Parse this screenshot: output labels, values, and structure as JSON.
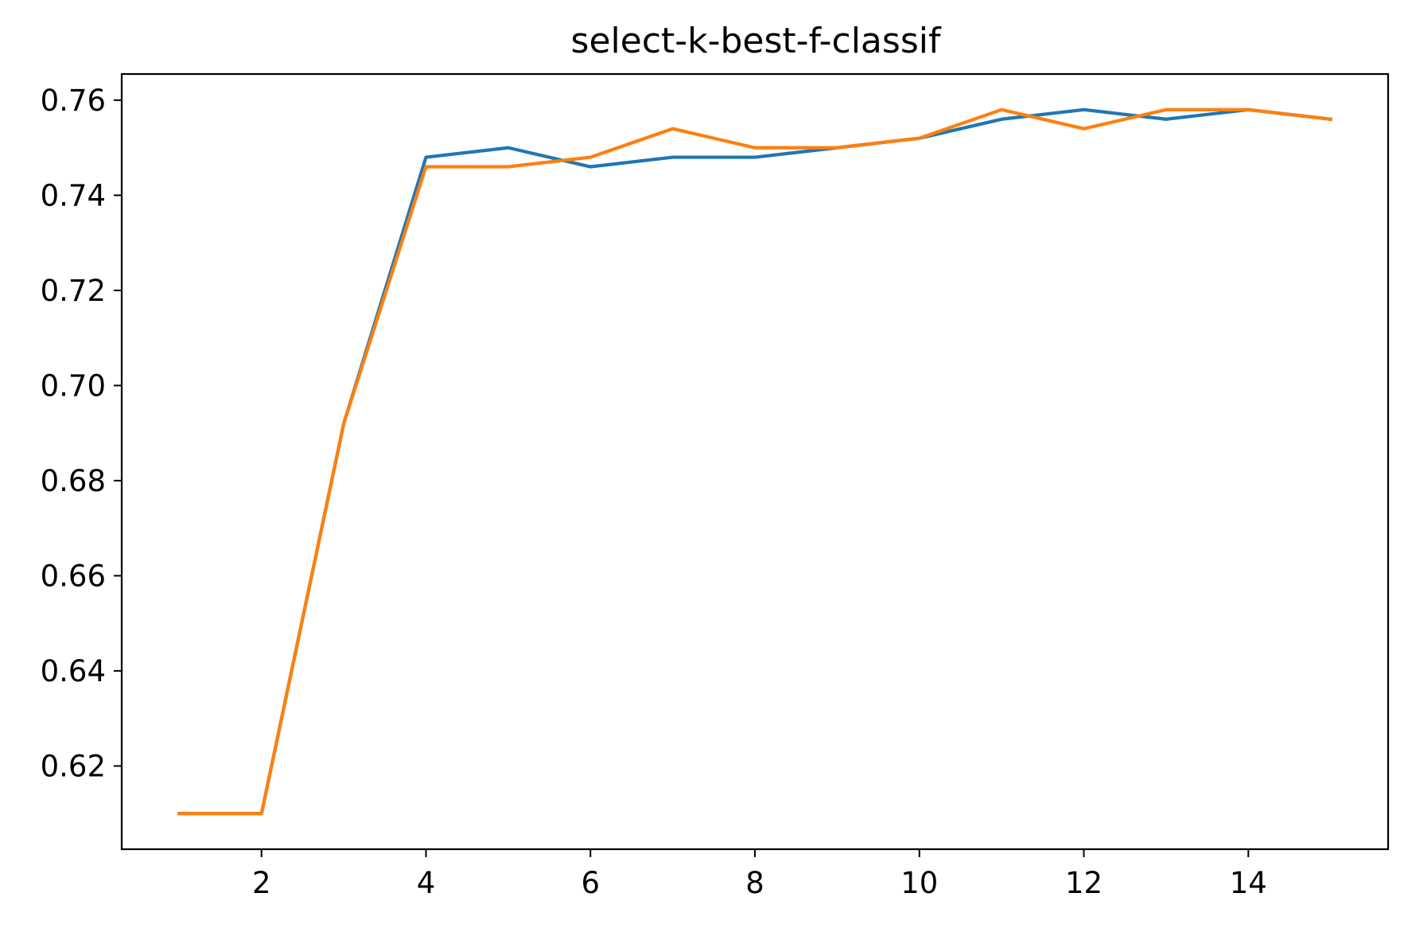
{
  "chart_data": {
    "type": "line",
    "title": "select-k-best-f-classif",
    "xlabel": "",
    "ylabel": "",
    "xlim": [
      0.3,
      15.7
    ],
    "ylim": [
      0.6025,
      0.7655
    ],
    "grid": false,
    "x_ticks": [
      2,
      4,
      6,
      8,
      10,
      12,
      14
    ],
    "y_ticks": [
      0.62,
      0.64,
      0.66,
      0.68,
      0.7,
      0.72,
      0.74,
      0.76
    ],
    "x_tick_labels": [
      "2",
      "4",
      "6",
      "8",
      "10",
      "12",
      "14"
    ],
    "y_tick_labels": [
      "0.62",
      "0.64",
      "0.66",
      "0.68",
      "0.70",
      "0.72",
      "0.74",
      "0.76"
    ],
    "x": [
      1,
      2,
      3,
      4,
      5,
      6,
      7,
      8,
      9,
      10,
      11,
      12,
      13,
      14,
      15
    ],
    "series": [
      {
        "color": "#1f77b4",
        "values": [
          0.61,
          0.61,
          0.692,
          0.748,
          0.75,
          0.746,
          0.748,
          0.748,
          0.75,
          0.752,
          0.756,
          0.758,
          0.756,
          0.758,
          0.756
        ]
      },
      {
        "color": "#ff7f0e",
        "values": [
          0.61,
          0.61,
          0.692,
          0.746,
          0.746,
          0.748,
          0.754,
          0.75,
          0.75,
          0.752,
          0.758,
          0.754,
          0.758,
          0.758,
          0.756
        ]
      }
    ]
  }
}
